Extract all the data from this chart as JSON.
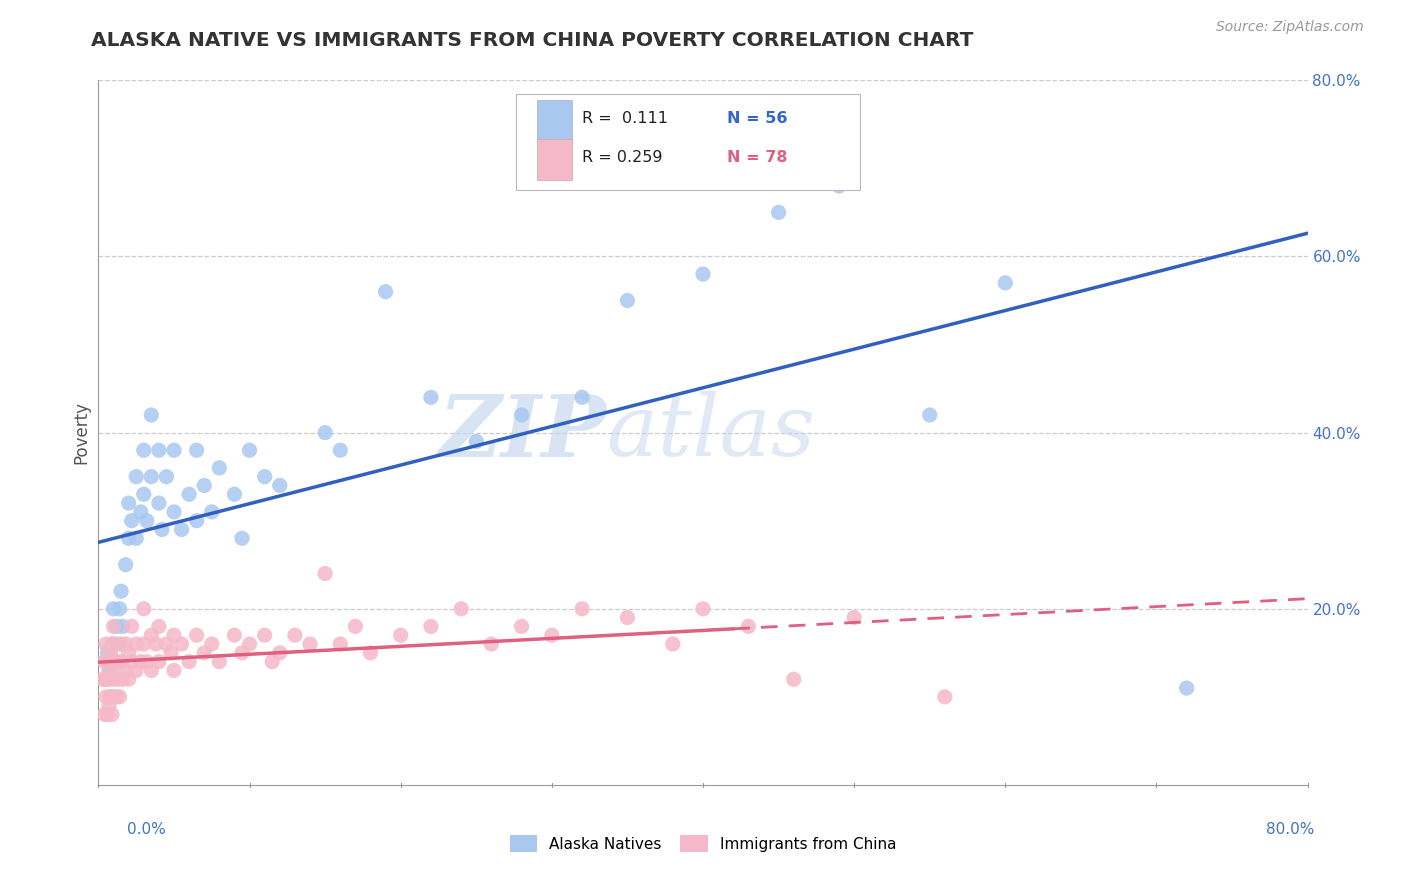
{
  "title": "ALASKA NATIVE VS IMMIGRANTS FROM CHINA POVERTY CORRELATION CHART",
  "source": "Source: ZipAtlas.com",
  "ylabel": "Poverty",
  "xlim": [
    0,
    0.8
  ],
  "ylim": [
    0,
    0.8
  ],
  "legend1_label": "Alaska Natives",
  "legend2_label": "Immigrants from China",
  "R1": 0.111,
  "N1": 56,
  "R2": 0.259,
  "N2": 78,
  "blue_color": "#A8C8F0",
  "pink_color": "#F5B8C8",
  "blue_line_color": "#3060C0",
  "pink_line_color": "#E06080",
  "watermark_zip": "ZIP",
  "watermark_atlas": "atlas",
  "grid_color": "#CCCCCC",
  "blue_x": [
    0.005,
    0.006,
    0.007,
    0.008,
    0.009,
    0.01,
    0.01,
    0.012,
    0.013,
    0.014,
    0.015,
    0.016,
    0.018,
    0.02,
    0.02,
    0.022,
    0.025,
    0.025,
    0.028,
    0.03,
    0.03,
    0.032,
    0.035,
    0.035,
    0.04,
    0.04,
    0.042,
    0.045,
    0.05,
    0.05,
    0.055,
    0.06,
    0.065,
    0.065,
    0.07,
    0.075,
    0.08,
    0.09,
    0.095,
    0.1,
    0.11,
    0.12,
    0.15,
    0.16,
    0.19,
    0.22,
    0.25,
    0.28,
    0.32,
    0.35,
    0.4,
    0.45,
    0.49,
    0.55,
    0.6,
    0.72
  ],
  "blue_y": [
    0.12,
    0.15,
    0.13,
    0.1,
    0.16,
    0.14,
    0.2,
    0.18,
    0.16,
    0.2,
    0.22,
    0.18,
    0.25,
    0.28,
    0.32,
    0.3,
    0.35,
    0.28,
    0.31,
    0.33,
    0.38,
    0.3,
    0.35,
    0.42,
    0.38,
    0.32,
    0.29,
    0.35,
    0.38,
    0.31,
    0.29,
    0.33,
    0.3,
    0.38,
    0.34,
    0.31,
    0.36,
    0.33,
    0.28,
    0.38,
    0.35,
    0.34,
    0.4,
    0.38,
    0.56,
    0.44,
    0.39,
    0.42,
    0.44,
    0.55,
    0.58,
    0.65,
    0.68,
    0.42,
    0.57,
    0.11
  ],
  "pink_x": [
    0.003,
    0.004,
    0.004,
    0.005,
    0.005,
    0.005,
    0.006,
    0.006,
    0.007,
    0.007,
    0.008,
    0.008,
    0.009,
    0.009,
    0.01,
    0.01,
    0.01,
    0.01,
    0.012,
    0.012,
    0.013,
    0.014,
    0.015,
    0.015,
    0.016,
    0.018,
    0.018,
    0.02,
    0.02,
    0.022,
    0.022,
    0.025,
    0.025,
    0.028,
    0.03,
    0.03,
    0.032,
    0.035,
    0.035,
    0.038,
    0.04,
    0.04,
    0.045,
    0.048,
    0.05,
    0.05,
    0.055,
    0.06,
    0.065,
    0.07,
    0.075,
    0.08,
    0.09,
    0.095,
    0.1,
    0.11,
    0.115,
    0.12,
    0.13,
    0.14,
    0.15,
    0.16,
    0.17,
    0.18,
    0.2,
    0.22,
    0.24,
    0.26,
    0.28,
    0.3,
    0.32,
    0.35,
    0.38,
    0.4,
    0.43,
    0.46,
    0.5,
    0.56
  ],
  "pink_y": [
    0.12,
    0.08,
    0.14,
    0.1,
    0.12,
    0.16,
    0.08,
    0.14,
    0.09,
    0.12,
    0.1,
    0.15,
    0.08,
    0.13,
    0.1,
    0.12,
    0.16,
    0.18,
    0.1,
    0.14,
    0.12,
    0.1,
    0.14,
    0.16,
    0.12,
    0.13,
    0.16,
    0.15,
    0.12,
    0.14,
    0.18,
    0.13,
    0.16,
    0.14,
    0.16,
    0.2,
    0.14,
    0.17,
    0.13,
    0.16,
    0.14,
    0.18,
    0.16,
    0.15,
    0.17,
    0.13,
    0.16,
    0.14,
    0.17,
    0.15,
    0.16,
    0.14,
    0.17,
    0.15,
    0.16,
    0.17,
    0.14,
    0.15,
    0.17,
    0.16,
    0.24,
    0.16,
    0.18,
    0.15,
    0.17,
    0.18,
    0.2,
    0.16,
    0.18,
    0.17,
    0.2,
    0.19,
    0.16,
    0.2,
    0.18,
    0.12,
    0.19,
    0.1
  ]
}
